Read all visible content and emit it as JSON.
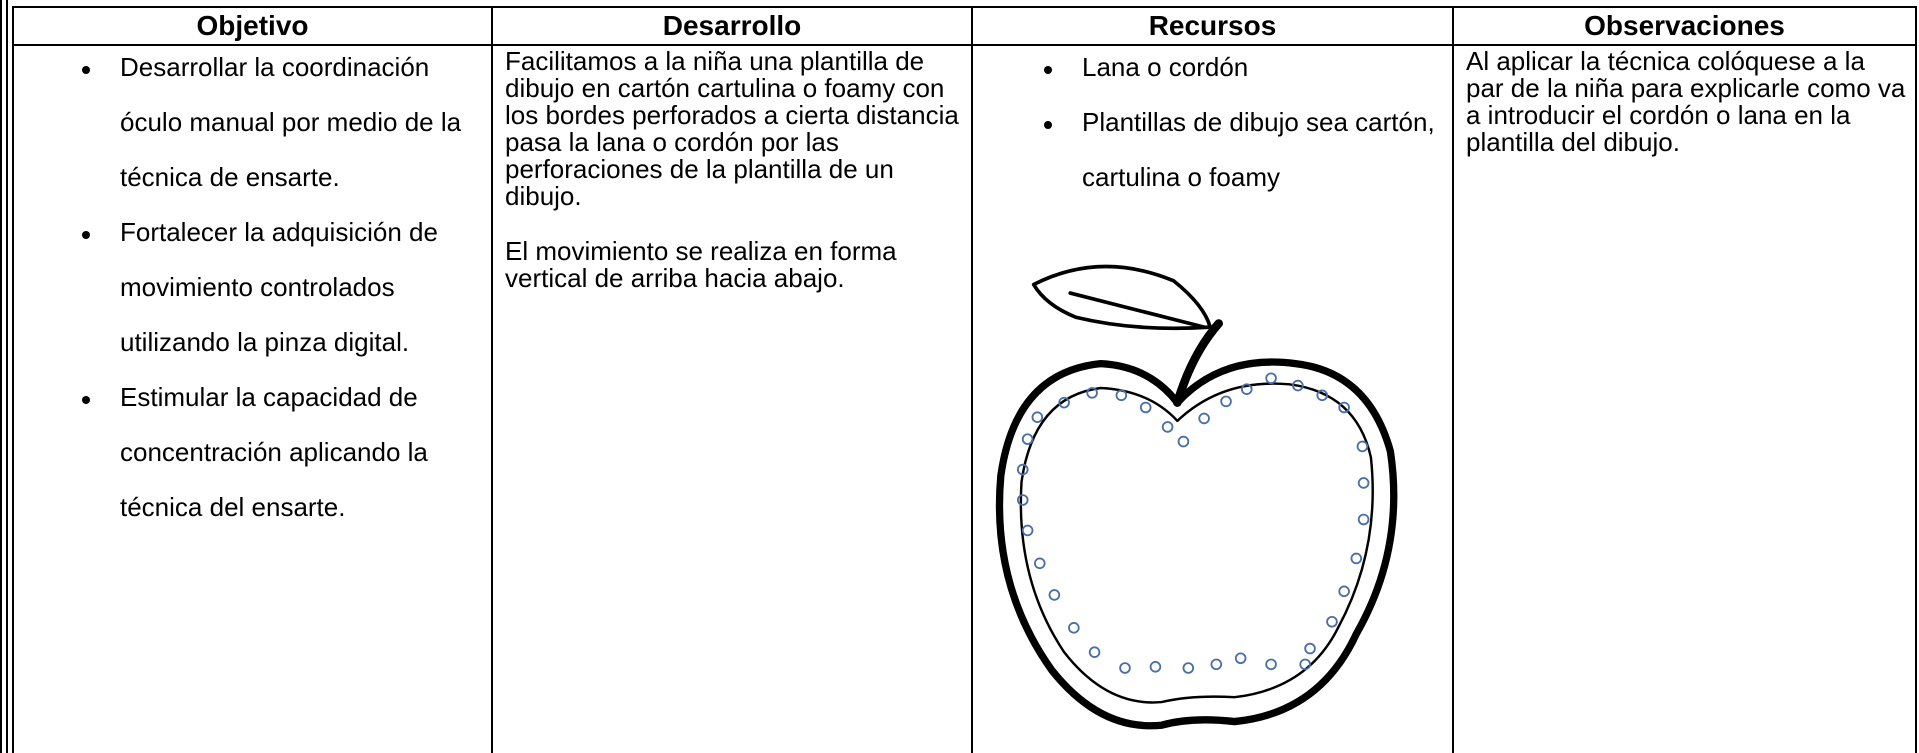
{
  "table": {
    "headers": [
      "Objetivo",
      "Desarrollo",
      "Recursos",
      "Observaciones"
    ],
    "objetivo": [
      "Desarrollar la coordinación óculo manual por medio de la técnica de ensarte.",
      "Fortalecer la adquisición de movimiento controlados utilizando la pinza digital.",
      "Estimular la capacidad de concentración aplicando la técnica del ensarte."
    ],
    "desarrollo": [
      "Facilitamos a la niña una plantilla de dibujo en cartón cartulina o foamy con los bordes perforados a cierta distancia pasa la lana o cordón por las perforaciones de la plantilla de un dibujo.",
      "El movimiento se realiza en forma vertical de arriba hacia abajo."
    ],
    "recursos": [
      "Lana o cordón",
      "Plantillas de dibujo sea cartón, cartulina o foamy"
    ],
    "observaciones": "Al aplicar la técnica colóquese a la par de la niña para explicarle como va a introducir el cordón o lana en la plantilla del dibujo."
  }
}
